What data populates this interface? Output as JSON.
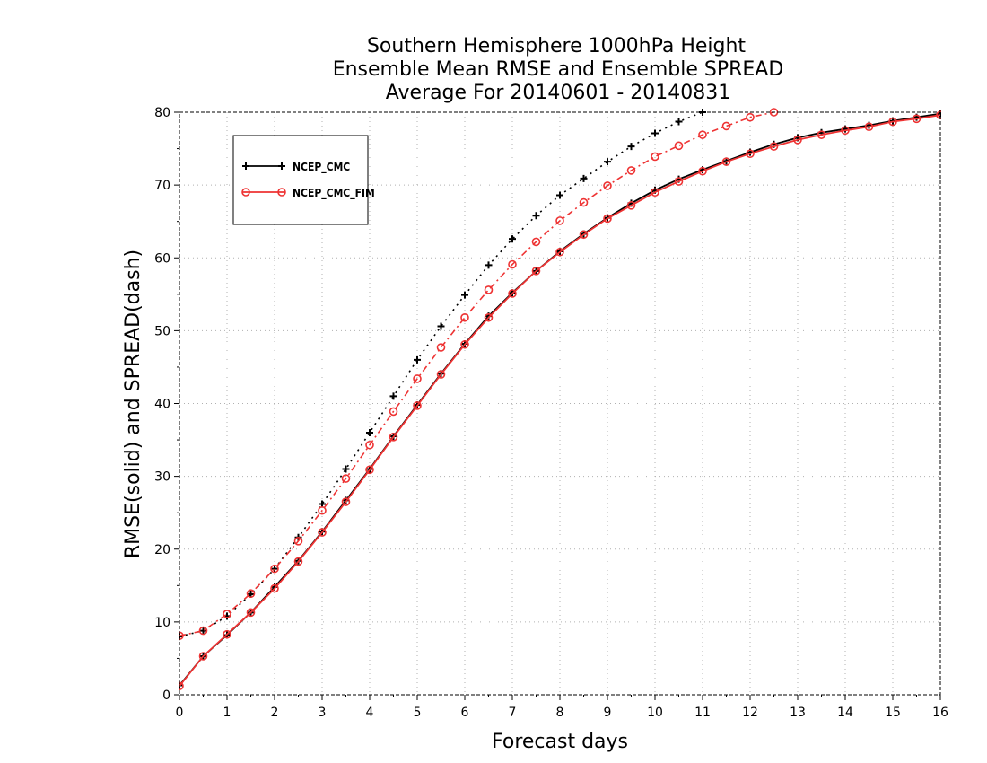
{
  "chart_data": {
    "type": "line",
    "title_lines": [
      "Southern Hemisphere 1000hPa Height",
      "Ensemble Mean RMSE and Ensemble SPREAD",
      "Average For 20140601 - 20140831"
    ],
    "xlabel": "Forecast days",
    "ylabel": "RMSE(solid) and SPREAD(dash)",
    "xlim": [
      0,
      16
    ],
    "ylim": [
      0,
      80
    ],
    "x_ticks": [
      0,
      1,
      2,
      3,
      4,
      5,
      6,
      7,
      8,
      9,
      10,
      11,
      12,
      13,
      14,
      15,
      16
    ],
    "y_ticks": [
      0,
      10,
      20,
      30,
      40,
      50,
      60,
      70,
      80
    ],
    "grid": true,
    "legend_position": "top-left",
    "x": [
      0,
      0.5,
      1,
      1.5,
      2,
      2.5,
      3,
      3.5,
      4,
      4.5,
      5,
      5.5,
      6,
      6.5,
      7,
      7.5,
      8,
      8.5,
      9,
      9.5,
      10,
      10.5,
      11,
      11.5,
      12,
      12.5,
      13,
      13.5,
      14,
      14.5,
      15,
      15.5,
      16
    ],
    "series": [
      {
        "name": "NCEP_CMC",
        "kind": "rmse",
        "color": "#000000",
        "marker": "plus",
        "line": "solid",
        "values": [
          1.3,
          5.3,
          8.2,
          11.3,
          14.8,
          18.4,
          22.4,
          26.7,
          31.0,
          35.5,
          39.8,
          44.1,
          48.2,
          52.0,
          55.2,
          58.2,
          60.9,
          63.3,
          65.5,
          67.5,
          69.3,
          70.8,
          72.1,
          73.3,
          74.5,
          75.6,
          76.5,
          77.2,
          77.7,
          78.2,
          78.8,
          79.3,
          79.8
        ]
      },
      {
        "name": "NCEP_CMC",
        "kind": "spread",
        "color": "#000000",
        "marker": "plus",
        "line": "dotted",
        "values": [
          8.0,
          8.8,
          10.8,
          13.8,
          17.3,
          21.6,
          26.2,
          31.0,
          36.0,
          41.0,
          46.0,
          50.6,
          54.9,
          59.0,
          62.6,
          65.8,
          68.6,
          70.9,
          73.2,
          75.3,
          77.1,
          78.7,
          80.0,
          null,
          null,
          null,
          null,
          null,
          null,
          null,
          null,
          null,
          null
        ]
      },
      {
        "name": "NCEP_CMC_FIM",
        "kind": "rmse",
        "color": "#ee3333",
        "marker": "circle",
        "line": "solid",
        "values": [
          1.2,
          5.3,
          8.3,
          11.3,
          14.6,
          18.3,
          22.3,
          26.5,
          30.9,
          35.4,
          39.7,
          44.0,
          48.1,
          51.8,
          55.1,
          58.2,
          60.8,
          63.2,
          65.4,
          67.2,
          69.0,
          70.5,
          71.9,
          73.2,
          74.3,
          75.3,
          76.2,
          76.9,
          77.5,
          78.0,
          78.7,
          79.1,
          79.6
        ]
      },
      {
        "name": "NCEP_CMC_FIM",
        "kind": "spread",
        "color": "#ee3333",
        "marker": "circle",
        "line": "dashdot",
        "values": [
          8.1,
          8.8,
          11.1,
          13.9,
          17.3,
          21.1,
          25.3,
          29.7,
          34.3,
          38.9,
          43.4,
          47.7,
          51.8,
          55.6,
          59.1,
          62.2,
          65.1,
          67.6,
          69.9,
          72.0,
          73.9,
          75.4,
          76.9,
          78.1,
          79.3,
          80.0,
          null,
          null,
          null,
          null,
          null,
          null,
          null
        ]
      }
    ]
  }
}
